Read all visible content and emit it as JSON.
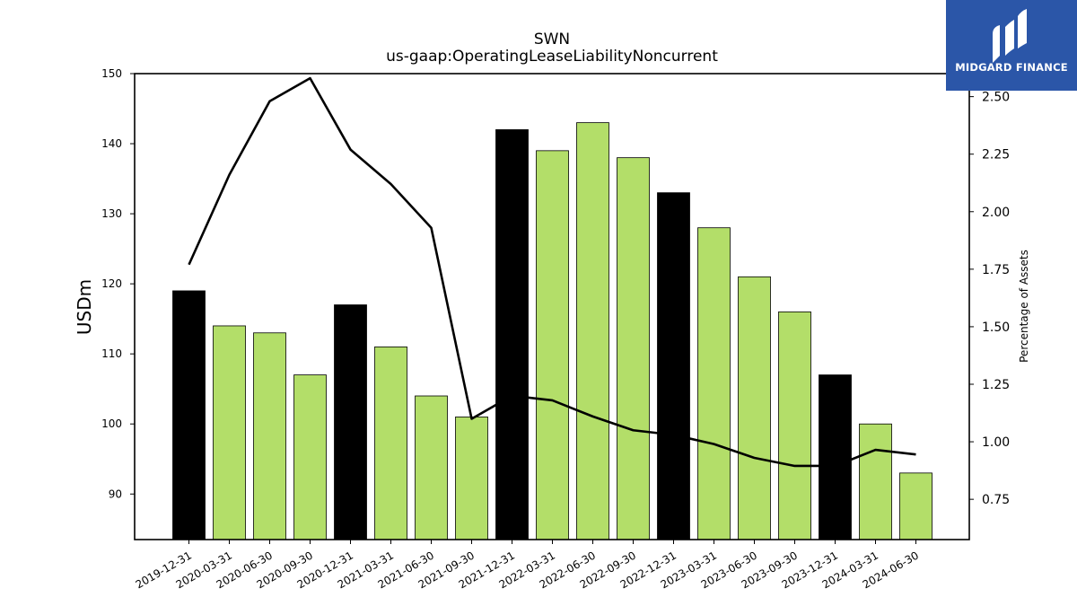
{
  "brand": {
    "name": "MIDGARD FINANCE",
    "background": "#2b56a8",
    "mark_icon": "midgard-logo-icon"
  },
  "chart_data": {
    "type": "bar",
    "title": "SWN",
    "subtitle": "us-gaap:OperatingLeaseLiabilityNoncurrent",
    "ylabel": "USDm",
    "y2label": "Percentage of Assets",
    "ylim": [
      83.5,
      150
    ],
    "y2lim": [
      0.575,
      2.6
    ],
    "yticks": [
      90,
      100,
      110,
      120,
      130,
      140,
      150
    ],
    "y2ticks": [
      "0.75",
      "1.00",
      "1.25",
      "1.50",
      "1.75",
      "2.00",
      "2.25",
      "2.50"
    ],
    "categories": [
      "2019-12-31",
      "2020-03-31",
      "2020-06-30",
      "2020-09-30",
      "2020-12-31",
      "2021-03-31",
      "2021-06-30",
      "2021-09-30",
      "2021-12-31",
      "2022-03-31",
      "2022-06-30",
      "2022-09-30",
      "2022-12-31",
      "2023-03-31",
      "2023-06-30",
      "2023-09-30",
      "2023-12-31",
      "2024-03-31",
      "2024-06-30"
    ],
    "series": [
      {
        "type": "bar",
        "values": [
          119,
          114,
          113,
          107,
          117,
          111,
          104,
          101,
          142,
          139,
          143,
          138,
          133,
          128,
          121,
          116,
          107,
          100,
          93
        ],
        "colors": [
          "#000000",
          "#b3de69",
          "#b3de69",
          "#b3de69",
          "#000000",
          "#b3de69",
          "#b3de69",
          "#b3de69",
          "#000000",
          "#b3de69",
          "#b3de69",
          "#b3de69",
          "#000000",
          "#b3de69",
          "#b3de69",
          "#b3de69",
          "#000000",
          "#b3de69",
          "#b3de69"
        ]
      },
      {
        "type": "line",
        "axis": "right",
        "color": "#000000",
        "values": [
          1.77,
          2.16,
          2.48,
          2.58,
          2.27,
          2.12,
          1.93,
          1.1,
          1.2,
          1.18,
          1.11,
          1.05,
          1.03,
          0.99,
          0.93,
          0.895,
          0.895,
          0.965,
          0.945
        ]
      }
    ],
    "grid": false,
    "legend": "none"
  }
}
